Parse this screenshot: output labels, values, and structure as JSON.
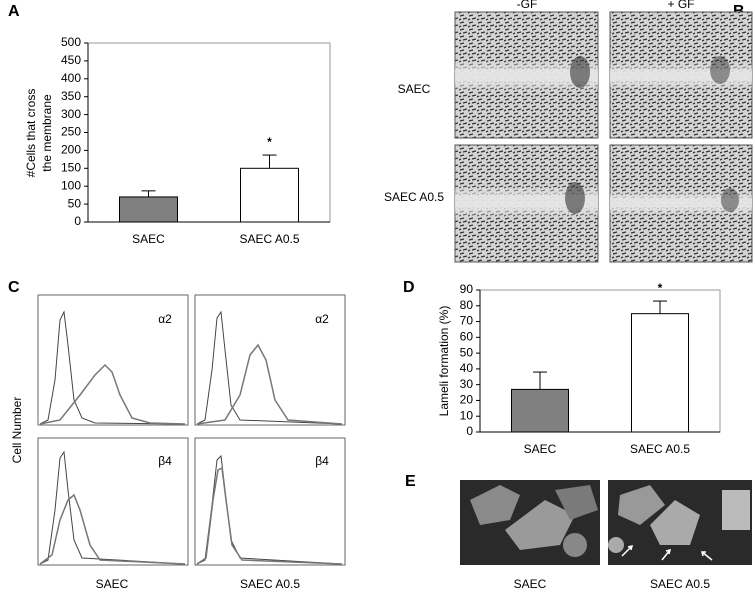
{
  "chart_data": [
    {
      "type": "bar",
      "panel": "A",
      "ylabel": [
        "#Cells that cross",
        "the membrane"
      ],
      "categories": [
        "SAEC",
        "SAEC A0.5"
      ],
      "values": [
        70,
        150
      ],
      "errors": [
        17,
        37
      ],
      "colors": [
        "#808080",
        "#ffffff"
      ],
      "ylim": [
        0,
        500
      ],
      "yticks": [
        0,
        50,
        100,
        150,
        200,
        250,
        300,
        350,
        400,
        450,
        500
      ],
      "annotation": "*"
    },
    {
      "type": "bar",
      "panel": "D",
      "ylabel": [
        "Lameli formation (%)"
      ],
      "categories": [
        "SAEC",
        "SAEC A0.5"
      ],
      "values": [
        27,
        75
      ],
      "errors": [
        11,
        8
      ],
      "colors": [
        "#808080",
        "#ffffff"
      ],
      "ylim": [
        0,
        90
      ],
      "yticks": [
        0,
        10,
        20,
        30,
        40,
        50,
        60,
        70,
        80,
        90
      ],
      "annotation": "*"
    }
  ],
  "panels": {
    "B": {
      "letter": "B",
      "columns": [
        "-GF",
        "+ GF"
      ],
      "rows": [
        "SAEC",
        "SAEC A0.5"
      ]
    },
    "C": {
      "letter": "C",
      "ylabel": "Cell Number",
      "markers": [
        "α2",
        "α2",
        "β4",
        "β4"
      ],
      "columns": [
        "SAEC",
        "SAEC A0.5"
      ]
    },
    "E": {
      "letter": "E",
      "columns": [
        "SAEC",
        "SAEC A0.5"
      ]
    }
  }
}
